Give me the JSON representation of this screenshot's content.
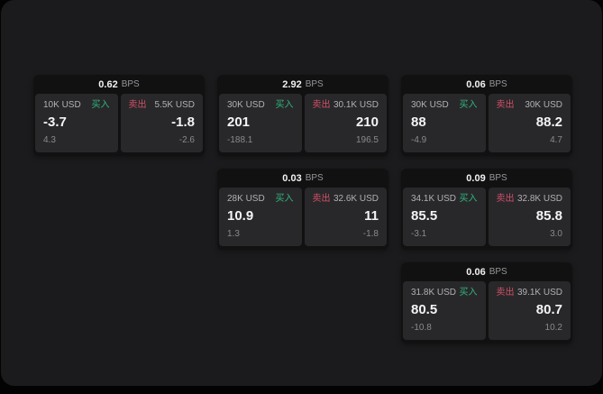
{
  "labels": {
    "unit": "BPS",
    "buy": "买入",
    "sell": "卖出"
  },
  "colors": {
    "buy": "#31b57e",
    "sell": "#d35068",
    "panel_bg": "#1b1b1d",
    "card_bg": "#111112",
    "subpanel_bg": "#28282a"
  },
  "cards": [
    {
      "bps": "0.62",
      "buy": {
        "amount": "10K USD",
        "price": "-3.7",
        "delta": "4.3"
      },
      "sell": {
        "amount": "5.5K USD",
        "price": "-1.8",
        "delta": "-2.6"
      }
    },
    {
      "bps": "2.92",
      "buy": {
        "amount": "30K USD",
        "price": "201",
        "delta": "-188.1"
      },
      "sell": {
        "amount": "30.1K USD",
        "price": "210",
        "delta": "196.5"
      }
    },
    {
      "bps": "0.06",
      "buy": {
        "amount": "30K USD",
        "price": "88",
        "delta": "-4.9"
      },
      "sell": {
        "amount": "30K USD",
        "price": "88.2",
        "delta": "4.7"
      }
    },
    {
      "bps": "0.03",
      "buy": {
        "amount": "28K USD",
        "price": "10.9",
        "delta": "1.3"
      },
      "sell": {
        "amount": "32.6K USD",
        "price": "11",
        "delta": "-1.8"
      }
    },
    {
      "bps": "0.09",
      "buy": {
        "amount": "34.1K USD",
        "price": "85.5",
        "delta": "-3.1"
      },
      "sell": {
        "amount": "32.8K USD",
        "price": "85.8",
        "delta": "3.0"
      }
    },
    {
      "bps": "0.06",
      "buy": {
        "amount": "31.8K USD",
        "price": "80.5",
        "delta": "-10.8"
      },
      "sell": {
        "amount": "39.1K USD",
        "price": "80.7",
        "delta": "10.2"
      }
    }
  ]
}
